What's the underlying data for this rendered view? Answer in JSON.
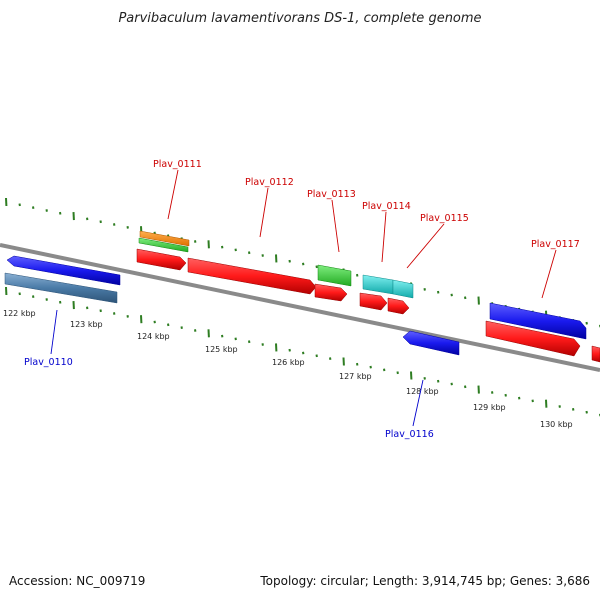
{
  "title": "Parvibaculum lavamentivorans DS-1, complete genome",
  "footer": {
    "accession": "Accession: NC_009719",
    "summary": "Topology: circular; Length: 3,914,745 bp; Genes: 3,686"
  },
  "colors": {
    "backbone": "#8a8a8a",
    "tick": "#2e7d22",
    "forward_label": "#cc0000",
    "reverse_label": "#0000cc",
    "red_feature": "#ff1a1a",
    "blue_feature": "#1a1aee",
    "steel_feature": "#4a7aa6",
    "orange_feature": "#ff8800",
    "green_feature": "#33cc33",
    "cyan_feature": "#22cccc"
  },
  "scale_labels": [
    "122 kbp",
    "123 kbp",
    "124 kbp",
    "125 kbp",
    "126 kbp",
    "127 kbp",
    "128 kbp",
    "129 kbp",
    "130 kbp"
  ],
  "gene_labels": [
    {
      "name": "Plav_0110",
      "strand": "reverse"
    },
    {
      "name": "Plav_0111",
      "strand": "forward"
    },
    {
      "name": "Plav_0112",
      "strand": "forward"
    },
    {
      "name": "Plav_0113",
      "strand": "forward"
    },
    {
      "name": "Plav_0114",
      "strand": "forward"
    },
    {
      "name": "Plav_0115",
      "strand": "forward"
    },
    {
      "name": "Plav_0116",
      "strand": "reverse"
    },
    {
      "name": "Plav_0117",
      "strand": "forward"
    }
  ]
}
